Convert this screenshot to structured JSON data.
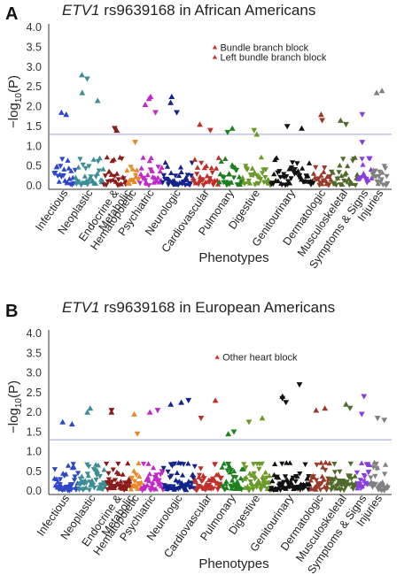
{
  "figure": {
    "category_colors": [
      "#2e46c9",
      "#3d8d95",
      "#8b1c1c",
      "#e8892a",
      "#c229c9",
      "#13238c",
      "#c0302a",
      "#1e7f1e",
      "#6a9a2a",
      "#111111",
      "#9a3a2a",
      "#4f6b2a",
      "#8a3ee0",
      "#808080"
    ],
    "threshold_color": "#9da3d8"
  },
  "chart_data": [
    {
      "type": "scatter",
      "panel": "A",
      "title_gene": "ETV1",
      "title_rest": " rs9639168 in African Americans",
      "ylabel": "-log10(P)",
      "ylabel_main": "−log",
      "ylabel_sub": "10",
      "ylabel_tail": "(P)",
      "xlabel": "Phenotypes",
      "ylim": [
        0,
        4.0
      ],
      "yticks": [
        "0.0",
        "0.5",
        "1.0",
        "1.5",
        "2.0",
        "2.5",
        "3.0",
        "3.5",
        "4.0"
      ],
      "threshold": 1.3,
      "categories": [
        "Infectious",
        "Neoplastic",
        "Endocrine & Metabolic",
        "Hematopoietic",
        "Psychiatric",
        "Neurologic",
        "Cardiovascular",
        "Pulmonary",
        "Digestive",
        "Genitourinary",
        "Dermatologic",
        "Musculoskeletal",
        "Symptoms & Signs",
        "Injuries"
      ],
      "category_counts": [
        24,
        32,
        26,
        14,
        26,
        34,
        30,
        26,
        32,
        48,
        20,
        30,
        16,
        18
      ],
      "annotations": [
        {
          "label": "Bundle branch block",
          "category": 6,
          "y": 3.5
        },
        {
          "label": "Left bundle branch block",
          "category": 6,
          "y": 3.25
        }
      ],
      "top_hits": [
        {
          "category": 0,
          "value": 1.85
        },
        {
          "category": 0,
          "value": 1.8
        },
        {
          "category": 1,
          "value": 2.8
        },
        {
          "category": 1,
          "value": 2.7
        },
        {
          "category": 1,
          "value": 2.35
        },
        {
          "category": 1,
          "value": 2.15
        },
        {
          "category": 2,
          "value": 1.45
        },
        {
          "category": 2,
          "value": 1.4
        },
        {
          "category": 3,
          "value": 1.1
        },
        {
          "category": 4,
          "value": 2.25
        },
        {
          "category": 4,
          "value": 2.2
        },
        {
          "category": 4,
          "value": 2.05
        },
        {
          "category": 4,
          "value": 1.85
        },
        {
          "category": 5,
          "value": 2.25
        },
        {
          "category": 5,
          "value": 2.1
        },
        {
          "category": 5,
          "value": 1.85
        },
        {
          "category": 6,
          "value": 1.55
        },
        {
          "category": 6,
          "value": 1.4
        },
        {
          "category": 7,
          "value": 1.45
        },
        {
          "category": 7,
          "value": 1.35
        },
        {
          "category": 8,
          "value": 1.4
        },
        {
          "category": 8,
          "value": 1.3
        },
        {
          "category": 9,
          "value": 1.5
        },
        {
          "category": 9,
          "value": 1.45
        },
        {
          "category": 10,
          "value": 1.8
        },
        {
          "category": 10,
          "value": 1.65
        },
        {
          "category": 11,
          "value": 1.65
        },
        {
          "category": 11,
          "value": 1.55
        },
        {
          "category": 12,
          "value": 1.8
        },
        {
          "category": 12,
          "value": 1.1
        },
        {
          "category": 13,
          "value": 2.4
        },
        {
          "category": 13,
          "value": 2.35
        }
      ]
    },
    {
      "type": "scatter",
      "panel": "B",
      "title_gene": "ETV1",
      "title_rest": " rs9639168 in European Americans",
      "ylabel": "-log10(P)",
      "ylabel_main": "−log",
      "ylabel_sub": "10",
      "ylabel_tail": "(P)",
      "xlabel": "Phenotypes",
      "ylim": [
        0,
        4.0
      ],
      "yticks": [
        "0.0",
        "0.5",
        "1.0",
        "1.5",
        "2.0",
        "2.5",
        "3.0",
        "3.5",
        "4.0"
      ],
      "threshold": 1.3,
      "categories": [
        "Infectious",
        "Neoplastic",
        "Endocrine & Metabolic",
        "Hematopoietic",
        "Psychiatric",
        "Neurologic",
        "Cardiovascular",
        "Pulmonary",
        "Digestive",
        "Genitourinary",
        "Dermatologic",
        "Musculoskeletal",
        "Symptoms & Signs",
        "Injuries"
      ],
      "category_counts": [
        40,
        46,
        40,
        18,
        36,
        52,
        44,
        36,
        44,
        66,
        32,
        44,
        22,
        30
      ],
      "annotations": [
        {
          "label": "Other heart block",
          "category": 6,
          "y": 3.4
        }
      ],
      "top_hits": [
        {
          "category": 0,
          "value": 1.75
        },
        {
          "category": 0,
          "value": 1.7
        },
        {
          "category": 1,
          "value": 2.1
        },
        {
          "category": 1,
          "value": 2.0
        },
        {
          "category": 2,
          "value": 2.05
        },
        {
          "category": 2,
          "value": 2.0
        },
        {
          "category": 3,
          "value": 1.95
        },
        {
          "category": 3,
          "value": 1.45
        },
        {
          "category": 4,
          "value": 2.05
        },
        {
          "category": 4,
          "value": 2.0
        },
        {
          "category": 5,
          "value": 2.3
        },
        {
          "category": 5,
          "value": 2.25
        },
        {
          "category": 5,
          "value": 2.2
        },
        {
          "category": 6,
          "value": 2.3
        },
        {
          "category": 6,
          "value": 1.85
        },
        {
          "category": 7,
          "value": 1.5
        },
        {
          "category": 7,
          "value": 1.45
        },
        {
          "category": 8,
          "value": 1.85
        },
        {
          "category": 8,
          "value": 1.75
        },
        {
          "category": 9,
          "value": 2.7
        },
        {
          "category": 9,
          "value": 2.4
        },
        {
          "category": 9,
          "value": 2.35
        },
        {
          "category": 9,
          "value": 2.25
        },
        {
          "category": 10,
          "value": 2.1
        },
        {
          "category": 10,
          "value": 2.05
        },
        {
          "category": 11,
          "value": 2.2
        },
        {
          "category": 11,
          "value": 2.1
        },
        {
          "category": 12,
          "value": 2.4
        },
        {
          "category": 12,
          "value": 1.95
        },
        {
          "category": 13,
          "value": 1.85
        },
        {
          "category": 13,
          "value": 1.8
        }
      ]
    }
  ]
}
